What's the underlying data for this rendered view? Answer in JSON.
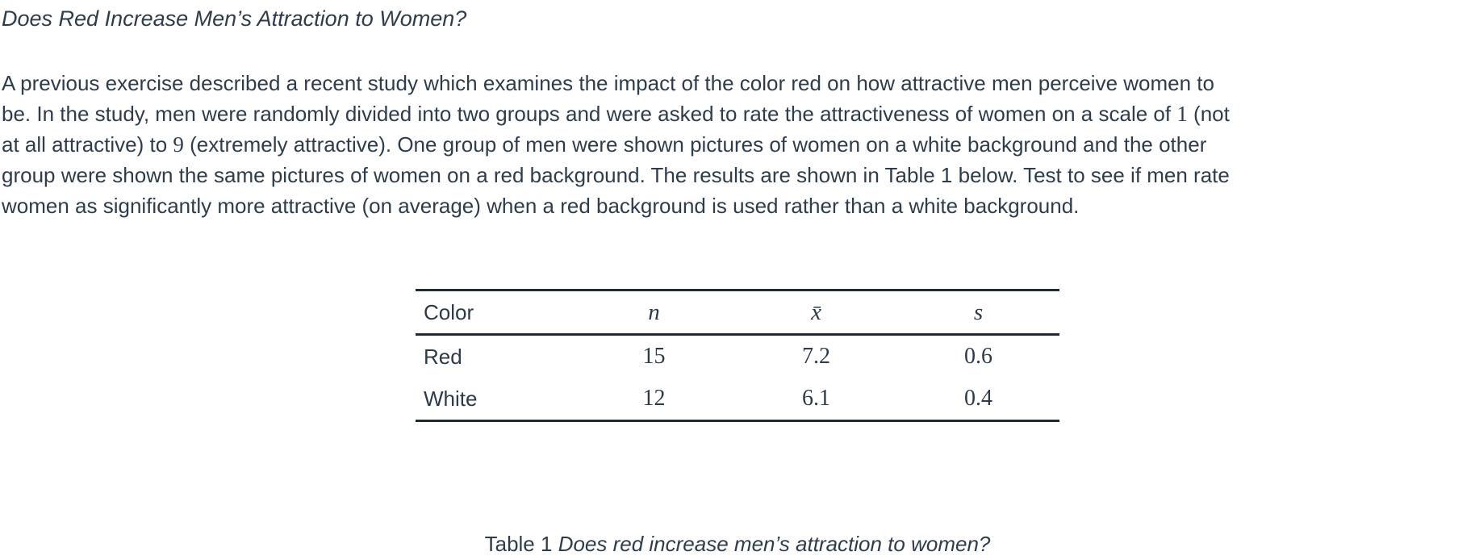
{
  "page": {
    "title": "Does Red Increase Men’s Attraction to Women?",
    "text_color": "#2e3d4d",
    "rule_color": "#1f2a35",
    "background_color": "#ffffff"
  },
  "paragraph": {
    "lines": [
      {
        "segments": [
          {
            "t": "A previous exercise described a recent study which examines the impact of the color red on how attractive men perceive women to",
            "serif": false
          }
        ]
      },
      {
        "segments": [
          {
            "t": "be. In the study, men were randomly divided into two groups and were asked to rate the attractiveness of women on a scale of ",
            "serif": false
          },
          {
            "t": "1",
            "serif": true
          },
          {
            "t": " (not",
            "serif": false
          }
        ]
      },
      {
        "segments": [
          {
            "t": "at all attractive) to ",
            "serif": false
          },
          {
            "t": "9",
            "serif": true
          },
          {
            "t": " (extremely attractive). One group of men were shown pictures of women on a white background and the other",
            "serif": false
          }
        ]
      },
      {
        "segments": [
          {
            "t": "group were shown the same pictures of women on a red background. The results are shown in Table 1 below. Test to see if men rate",
            "serif": false
          }
        ]
      },
      {
        "segments": [
          {
            "t": "women as significantly more attractive (on average) when a red background is used rather than a white background.",
            "serif": false
          }
        ]
      }
    ]
  },
  "table": {
    "headers": [
      {
        "label": "Color"
      },
      {
        "label": "n"
      },
      {
        "label": "x̄"
      },
      {
        "label": "s"
      }
    ],
    "rows": [
      {
        "color": "Red",
        "n": "15",
        "xbar": "7.2",
        "s": "0.6"
      },
      {
        "color": "White",
        "n": "12",
        "xbar": "6.1",
        "s": "0.4"
      }
    ]
  },
  "caption": {
    "prefix": "Table 1 ",
    "italic_text": "Does red increase men’s attraction to women?"
  }
}
